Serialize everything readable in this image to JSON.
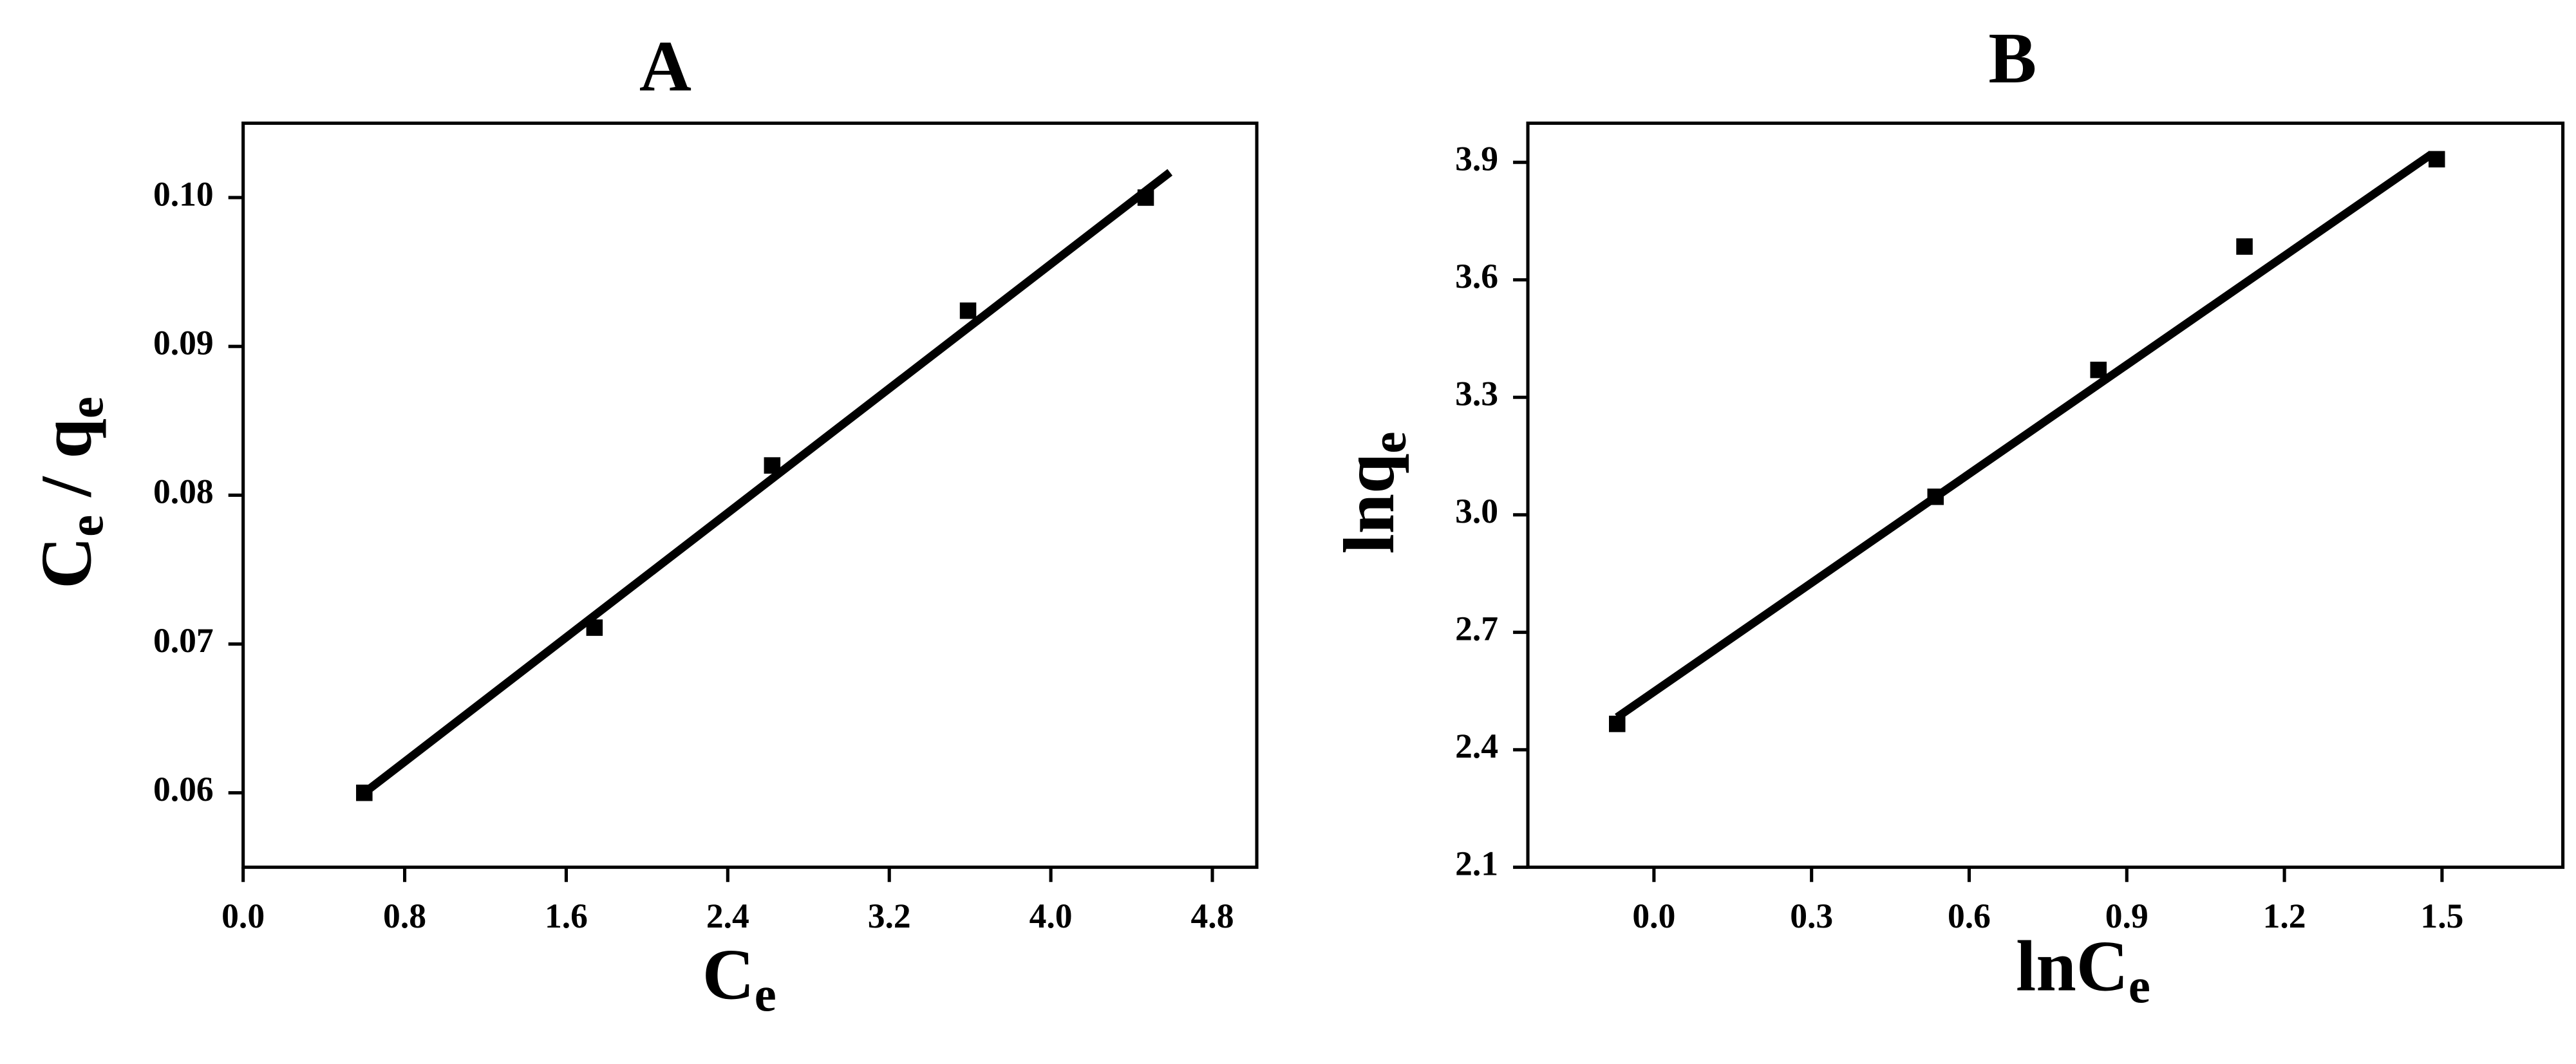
{
  "chart_data": [
    {
      "type": "scatter",
      "title": "A",
      "x_label": [
        "C",
        "e"
      ],
      "y_label": [
        "C",
        "e",
        " / q",
        "e"
      ],
      "xlim": [
        0,
        5.02
      ],
      "ylim": [
        0.055,
        0.105
      ],
      "xticks": [
        {
          "value": 0,
          "label": "0.0"
        },
        0.8,
        1.6,
        2.4,
        3.2,
        {
          "value": 4,
          "label": "4.0"
        },
        4.8
      ],
      "yticks": [
        0.06,
        0.07,
        0.08,
        0.09,
        {
          "value": 0.1,
          "label": "0.10"
        }
      ],
      "series": [
        {
          "color": "#000000",
          "x": [
            0.6,
            1.74,
            2.62,
            3.59,
            4.47
          ],
          "values": [
            0.06,
            0.0711,
            0.082,
            0.0924,
            0.1
          ]
        }
      ],
      "fit": {
        "color": "#000000",
        "x": [
          0.6,
          4.59
        ],
        "values": [
          0.06,
          0.1017
        ]
      }
    },
    {
      "type": "scatter",
      "title": "B",
      "x_label": [
        "lnC",
        "e"
      ],
      "y_label": [
        "lnq",
        "e"
      ],
      "xlim": [
        -0.24,
        1.73
      ],
      "ylim": [
        2.1,
        4.0
      ],
      "xticks": [
        {
          "value": 0,
          "label": "0.0"
        },
        0.3,
        0.6,
        0.9,
        1.2,
        1.5
      ],
      "yticks": [
        2.1,
        2.4,
        2.7,
        {
          "value": 3,
          "label": "3.0"
        },
        3.3,
        3.6,
        3.9
      ],
      "series": [
        {
          "color": "#000000",
          "x": [
            -0.07,
            0.536,
            0.846,
            1.124,
            1.49
          ],
          "values": [
            2.466,
            3.046,
            3.37,
            3.685,
            3.908
          ]
        }
      ],
      "fit": {
        "color": "#000000",
        "x": [
          -0.07,
          1.48
        ],
        "values": [
          2.483,
          3.921
        ]
      }
    }
  ]
}
